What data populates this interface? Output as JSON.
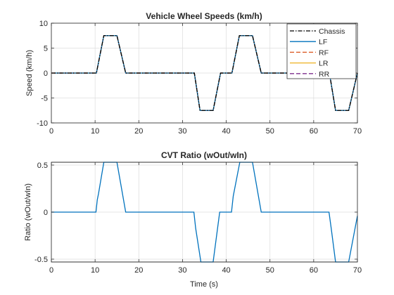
{
  "chart_data": [
    {
      "type": "line",
      "title": "Vehicle Wheel Speeds (km/h)",
      "xlabel": "",
      "ylabel": "Speed (km/h)",
      "xlim": [
        0,
        70
      ],
      "ylim": [
        -10,
        10
      ],
      "xticks": [
        0,
        10,
        20,
        30,
        40,
        50,
        60,
        70
      ],
      "yticks": [
        -10,
        -5,
        0,
        5,
        10
      ],
      "grid": true,
      "legend_position": "top-right",
      "series": [
        {
          "name": "Chassis",
          "color": "#000000",
          "style": "dashdot",
          "x": [
            0,
            10.3,
            12.0,
            15.0,
            17.0,
            32.7,
            34.0,
            37.0,
            38.7,
            40.0,
            41.3,
            43.0,
            46.0,
            48.0,
            63.6,
            65.0,
            68.0,
            70
          ],
          "y": [
            0,
            0,
            7.5,
            7.5,
            0,
            0,
            -7.5,
            -7.5,
            0,
            0,
            0,
            7.5,
            7.5,
            0,
            0,
            -7.5,
            -7.5,
            0
          ]
        },
        {
          "name": "LF",
          "color": "#0072BD",
          "style": "solid",
          "x": [
            0,
            10.3,
            12.0,
            15.0,
            17.0,
            32.7,
            34.0,
            37.0,
            38.7,
            40.0,
            41.3,
            43.0,
            46.0,
            48.0,
            63.6,
            65.0,
            68.0,
            70
          ],
          "y": [
            0,
            0,
            7.5,
            7.5,
            0,
            0,
            -7.5,
            -7.5,
            0,
            0,
            0,
            7.5,
            7.5,
            0,
            0,
            -7.5,
            -7.5,
            0
          ]
        },
        {
          "name": "RF",
          "color": "#D95319",
          "style": "dashed",
          "x": [
            0,
            10.3,
            12.0,
            15.0,
            17.0,
            32.7,
            34.0,
            37.0,
            38.7,
            40.0,
            41.3,
            43.0,
            46.0,
            48.0,
            63.6,
            65.0,
            68.0,
            70
          ],
          "y": [
            0,
            0,
            7.5,
            7.5,
            0,
            0,
            -7.5,
            -7.5,
            0,
            0,
            0,
            7.5,
            7.5,
            0,
            0,
            -7.5,
            -7.5,
            0
          ]
        },
        {
          "name": "LR",
          "color": "#EDB120",
          "style": "solid",
          "x": [
            0,
            10.3,
            12.0,
            15.0,
            17.0,
            32.7,
            34.0,
            37.0,
            38.7,
            40.0,
            41.3,
            43.0,
            46.0,
            48.0,
            63.6,
            65.0,
            68.0,
            70
          ],
          "y": [
            0,
            0,
            7.5,
            7.5,
            0,
            0,
            -7.5,
            -7.5,
            0,
            0,
            0,
            7.5,
            7.5,
            0,
            0,
            -7.5,
            -7.5,
            0
          ]
        },
        {
          "name": "RR",
          "color": "#7E2F8E",
          "style": "dashed",
          "x": [
            0,
            10.3,
            12.0,
            15.0,
            17.0,
            32.7,
            34.0,
            37.0,
            38.7,
            40.0,
            41.3,
            43.0,
            46.0,
            48.0,
            63.6,
            65.0,
            68.0,
            70
          ],
          "y": [
            0,
            0,
            7.5,
            7.5,
            0,
            0,
            -7.5,
            -7.5,
            0,
            0,
            0,
            7.5,
            7.5,
            0,
            0,
            -7.5,
            -7.5,
            0
          ]
        }
      ]
    },
    {
      "type": "line",
      "title": "CVT Ratio (wOut/wIn)",
      "xlabel": "Time (s)",
      "ylabel": "Ratio (wOut/wIn)",
      "xlim": [
        0,
        70
      ],
      "ylim": [
        -0.53,
        0.53
      ],
      "xticks": [
        0,
        10,
        20,
        30,
        40,
        50,
        60,
        70
      ],
      "yticks": [
        -0.5,
        0,
        0.5
      ],
      "grid": true,
      "series": [
        {
          "name": "",
          "color": "#0072BD",
          "style": "solid",
          "x": [
            0,
            10.2,
            10.5,
            10.8,
            12.0,
            15.0,
            17.0,
            32.6,
            33.0,
            34.2,
            37.0,
            38.5,
            39.5,
            41.2,
            41.6,
            43.1,
            46.0,
            48.0,
            63.5,
            64.0,
            65.0,
            68.0,
            70
          ],
          "y": [
            0,
            0,
            0.13,
            0.2,
            0.53,
            0.53,
            0,
            0,
            -0.17,
            -0.53,
            -0.53,
            0,
            0,
            0,
            0.17,
            0.53,
            0.53,
            0,
            0,
            -0.17,
            -0.53,
            -0.53,
            -0.04
          ]
        }
      ]
    }
  ]
}
